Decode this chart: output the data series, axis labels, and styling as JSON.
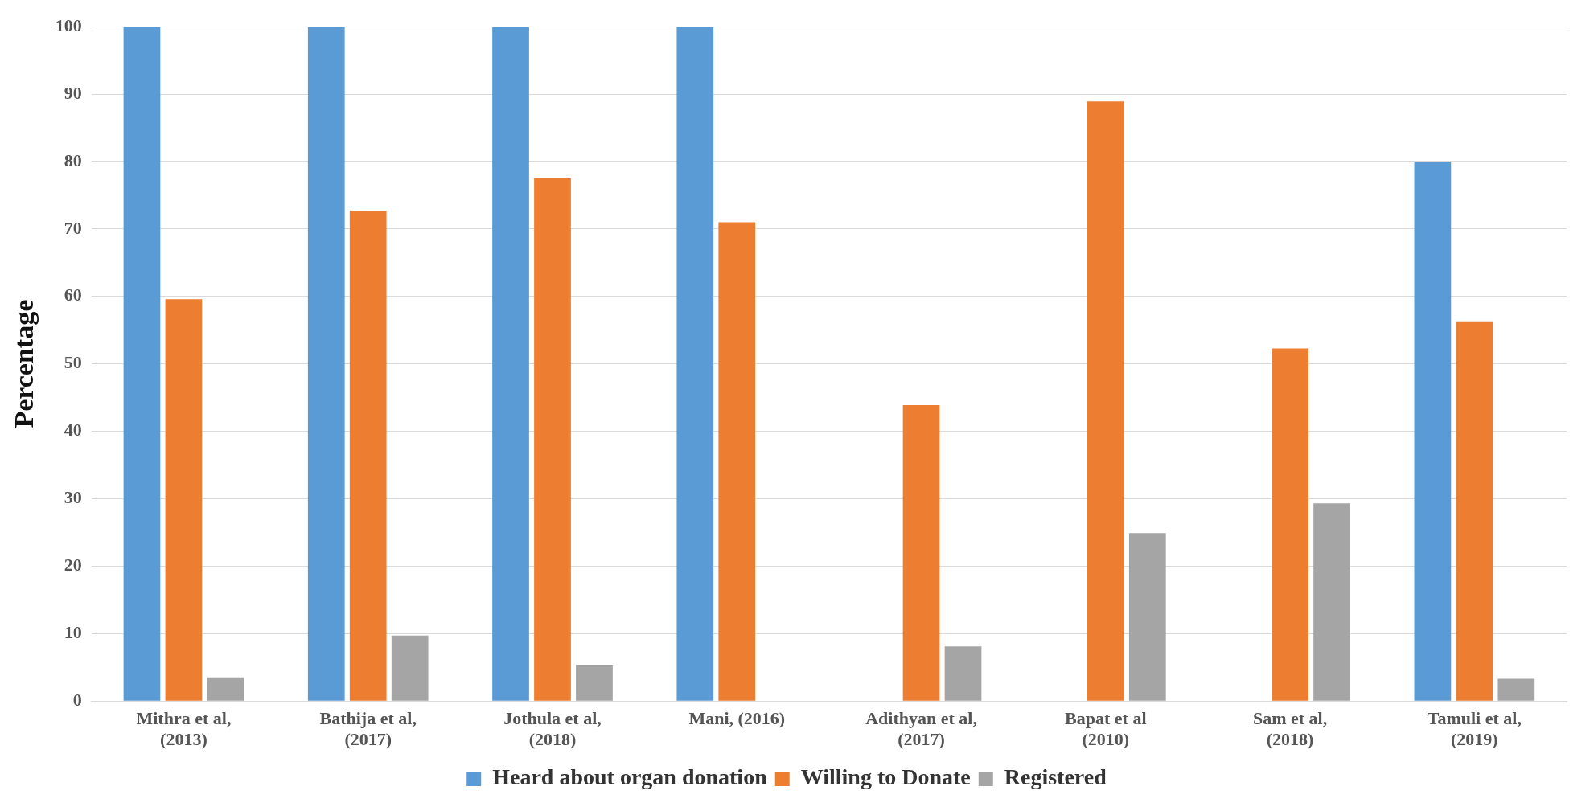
{
  "chart_data": {
    "type": "bar",
    "ylabel": "Percentage",
    "categories": [
      "Mithra et al,\n(2013)",
      "Bathija et al,\n(2017)",
      "Jothula et al,\n(2018)",
      "Mani, (2016)",
      "Adithyan et al,\n(2017)",
      "Bapat et al\n(2010)",
      "Sam et al,\n(2018)",
      "Tamuli et al,\n(2019)"
    ],
    "series": [
      {
        "name": "Heard about organ donation",
        "color": "#5b9bd5",
        "values": [
          100,
          100,
          100,
          100,
          null,
          null,
          null,
          80
        ]
      },
      {
        "name": "Willing to Donate",
        "color": "#ed7d31",
        "values": [
          59.6,
          72.7,
          77.5,
          71,
          43.9,
          88.9,
          52.3,
          56.3
        ]
      },
      {
        "name": "Registered",
        "color": "#a5a5a5",
        "values": [
          3.5,
          9.7,
          5.4,
          null,
          8.1,
          24.9,
          29.3,
          3.3
        ]
      }
    ],
    "ylim": [
      0,
      100
    ],
    "yticks": [
      0,
      10,
      20,
      30,
      40,
      50,
      60,
      70,
      80,
      90,
      100
    ],
    "grid": "y",
    "legend": "bottom"
  }
}
